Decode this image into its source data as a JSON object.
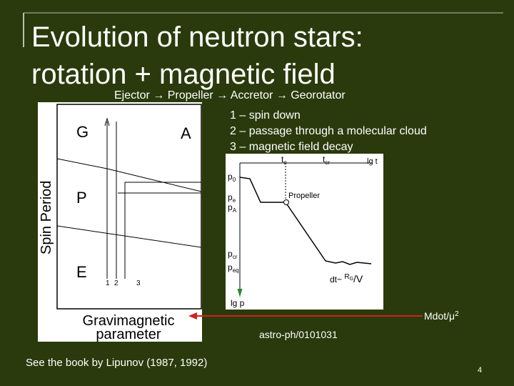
{
  "slide": {
    "title": [
      "Evolution of neutron stars:",
      "rotation + magnetic field"
    ],
    "subtitle": "Ejector → Propeller → Accretor → Georotator",
    "list": [
      "1 – spin down",
      "2 – passage through a molecular cloud",
      "3 – magnetic field decay"
    ],
    "left_diagram": {
      "regions": [
        "G",
        "A",
        "P",
        "E"
      ],
      "y_label": "Spin Period",
      "x_label": [
        "Gravimagnetic",
        "parameter"
      ],
      "tracks": [
        "1",
        "2",
        "3"
      ]
    },
    "right_diagram": {
      "top": [
        {
          "main": "t",
          "sub": "e"
        },
        {
          "main": "t",
          "sub": "cr"
        },
        {
          "main": "lg t",
          "sub": ""
        }
      ],
      "left": [
        {
          "main": "p",
          "sub": "0"
        },
        {
          "main": "p",
          "sub": "e"
        },
        {
          "main": "p",
          "sub": "A"
        },
        {
          "main": "p",
          "sub": "cr"
        },
        {
          "main": "p",
          "sub": "eq"
        }
      ],
      "propeller": "Propeller",
      "dt": {
        "main": "dt~ ",
        "frac": "R",
        "sub": "G",
        "tail": "/V"
      },
      "y_label": "lg p"
    },
    "arrow_label": {
      "main": "Mdot/μ",
      "sup": "2"
    },
    "reference": "astro-ph/0101031",
    "note": "See the book by Lipunov (1987, 1992)",
    "page_number": "4"
  }
}
